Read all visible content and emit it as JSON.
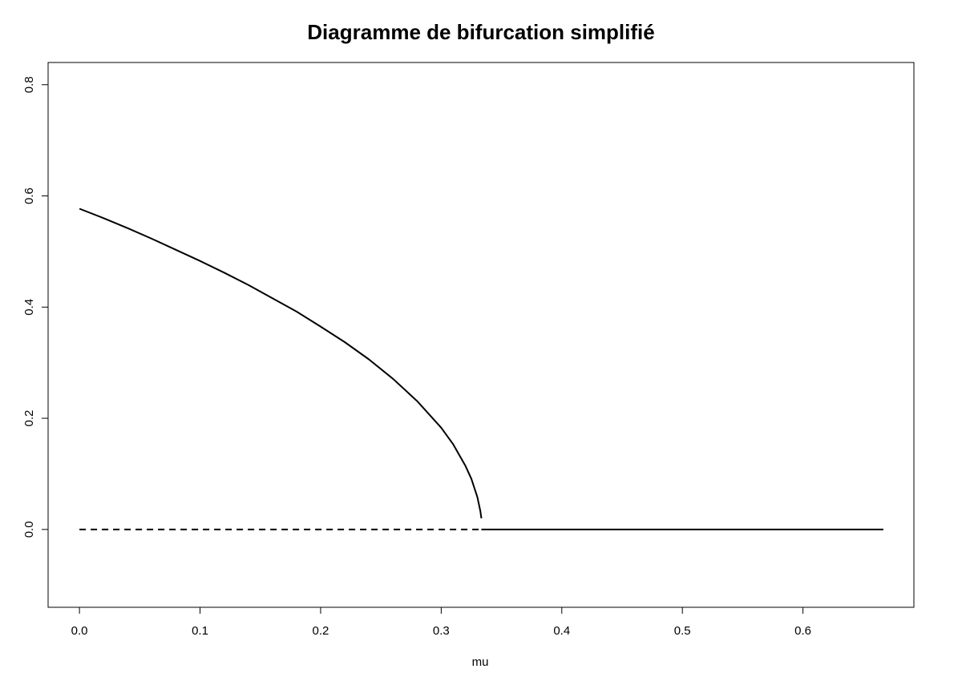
{
  "chart_data": {
    "type": "line",
    "title": "Diagramme de bifurcation simplifié",
    "xlabel": "mu",
    "ylabel": "",
    "xlim": [
      -0.026,
      0.692
    ],
    "ylim": [
      -0.14,
      0.84
    ],
    "x_ticks": [
      0.0,
      0.1,
      0.2,
      0.3,
      0.4,
      0.5,
      0.6
    ],
    "x_tick_labels": [
      "0.0",
      "0.1",
      "0.2",
      "0.3",
      "0.4",
      "0.5",
      "0.6"
    ],
    "y_ticks": [
      0.0,
      0.2,
      0.4,
      0.6,
      0.8
    ],
    "y_tick_labels": [
      "0.0",
      "0.2",
      "0.4",
      "0.6",
      "0.8"
    ],
    "grid": false,
    "legend": "none",
    "line_color": "#000000",
    "series": [
      {
        "style": "solid",
        "x": [
          0.0,
          0.02,
          0.04,
          0.06,
          0.08,
          0.1,
          0.12,
          0.14,
          0.16,
          0.18,
          0.2,
          0.22,
          0.24,
          0.26,
          0.28,
          0.3,
          0.31,
          0.32,
          0.325,
          0.33,
          0.3325,
          0.3333
        ],
        "y": [
          0.577,
          0.56,
          0.542,
          0.523,
          0.503,
          0.483,
          0.462,
          0.44,
          0.416,
          0.392,
          0.365,
          0.337,
          0.306,
          0.271,
          0.231,
          0.183,
          0.153,
          0.115,
          0.091,
          0.058,
          0.033,
          0.02
        ]
      },
      {
        "style": "dashed",
        "x": [
          0.0,
          0.3333
        ],
        "y": [
          0.0,
          0.0
        ]
      },
      {
        "style": "solid",
        "x": [
          0.3333,
          0.6667
        ],
        "y": [
          0.0,
          0.0
        ]
      }
    ]
  }
}
